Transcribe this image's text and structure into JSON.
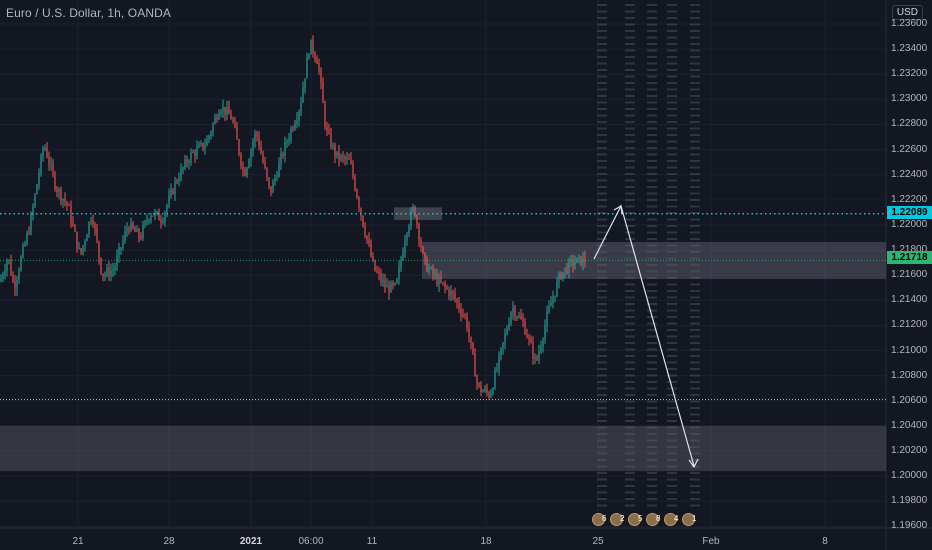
{
  "header": {
    "symbol_title": "Euro / U.S. Dollar, 1h, OANDA",
    "currency_label": "USD"
  },
  "price_axis": {
    "ticks": [
      "1.23600",
      "1.23400",
      "1.23200",
      "1.23000",
      "1.22800",
      "1.22600",
      "1.22400",
      "1.22200",
      "1.22000",
      "1.21800",
      "1.21600",
      "1.21400",
      "1.21200",
      "1.21000",
      "1.20800",
      "1.20600",
      "1.20400",
      "1.20200",
      "1.20000",
      "1.19800",
      "1.19600"
    ],
    "tag_target": "1.22089",
    "tag_current": "1.21718"
  },
  "time_axis": {
    "labels": [
      "21",
      "28",
      "2021",
      "06:00",
      "11",
      "18",
      "25",
      "Feb",
      "8"
    ]
  },
  "event_markers": [
    "6",
    "2",
    "5",
    "8",
    "4",
    "1"
  ],
  "colors": {
    "background": "#131722",
    "bull_candle": "#26a69a",
    "bear_candle": "#ef5350",
    "target_line": "#00c8e0",
    "current_tag": "#2bb673",
    "support_line": "#d4b537",
    "zone_fill": "#5d606b"
  }
}
